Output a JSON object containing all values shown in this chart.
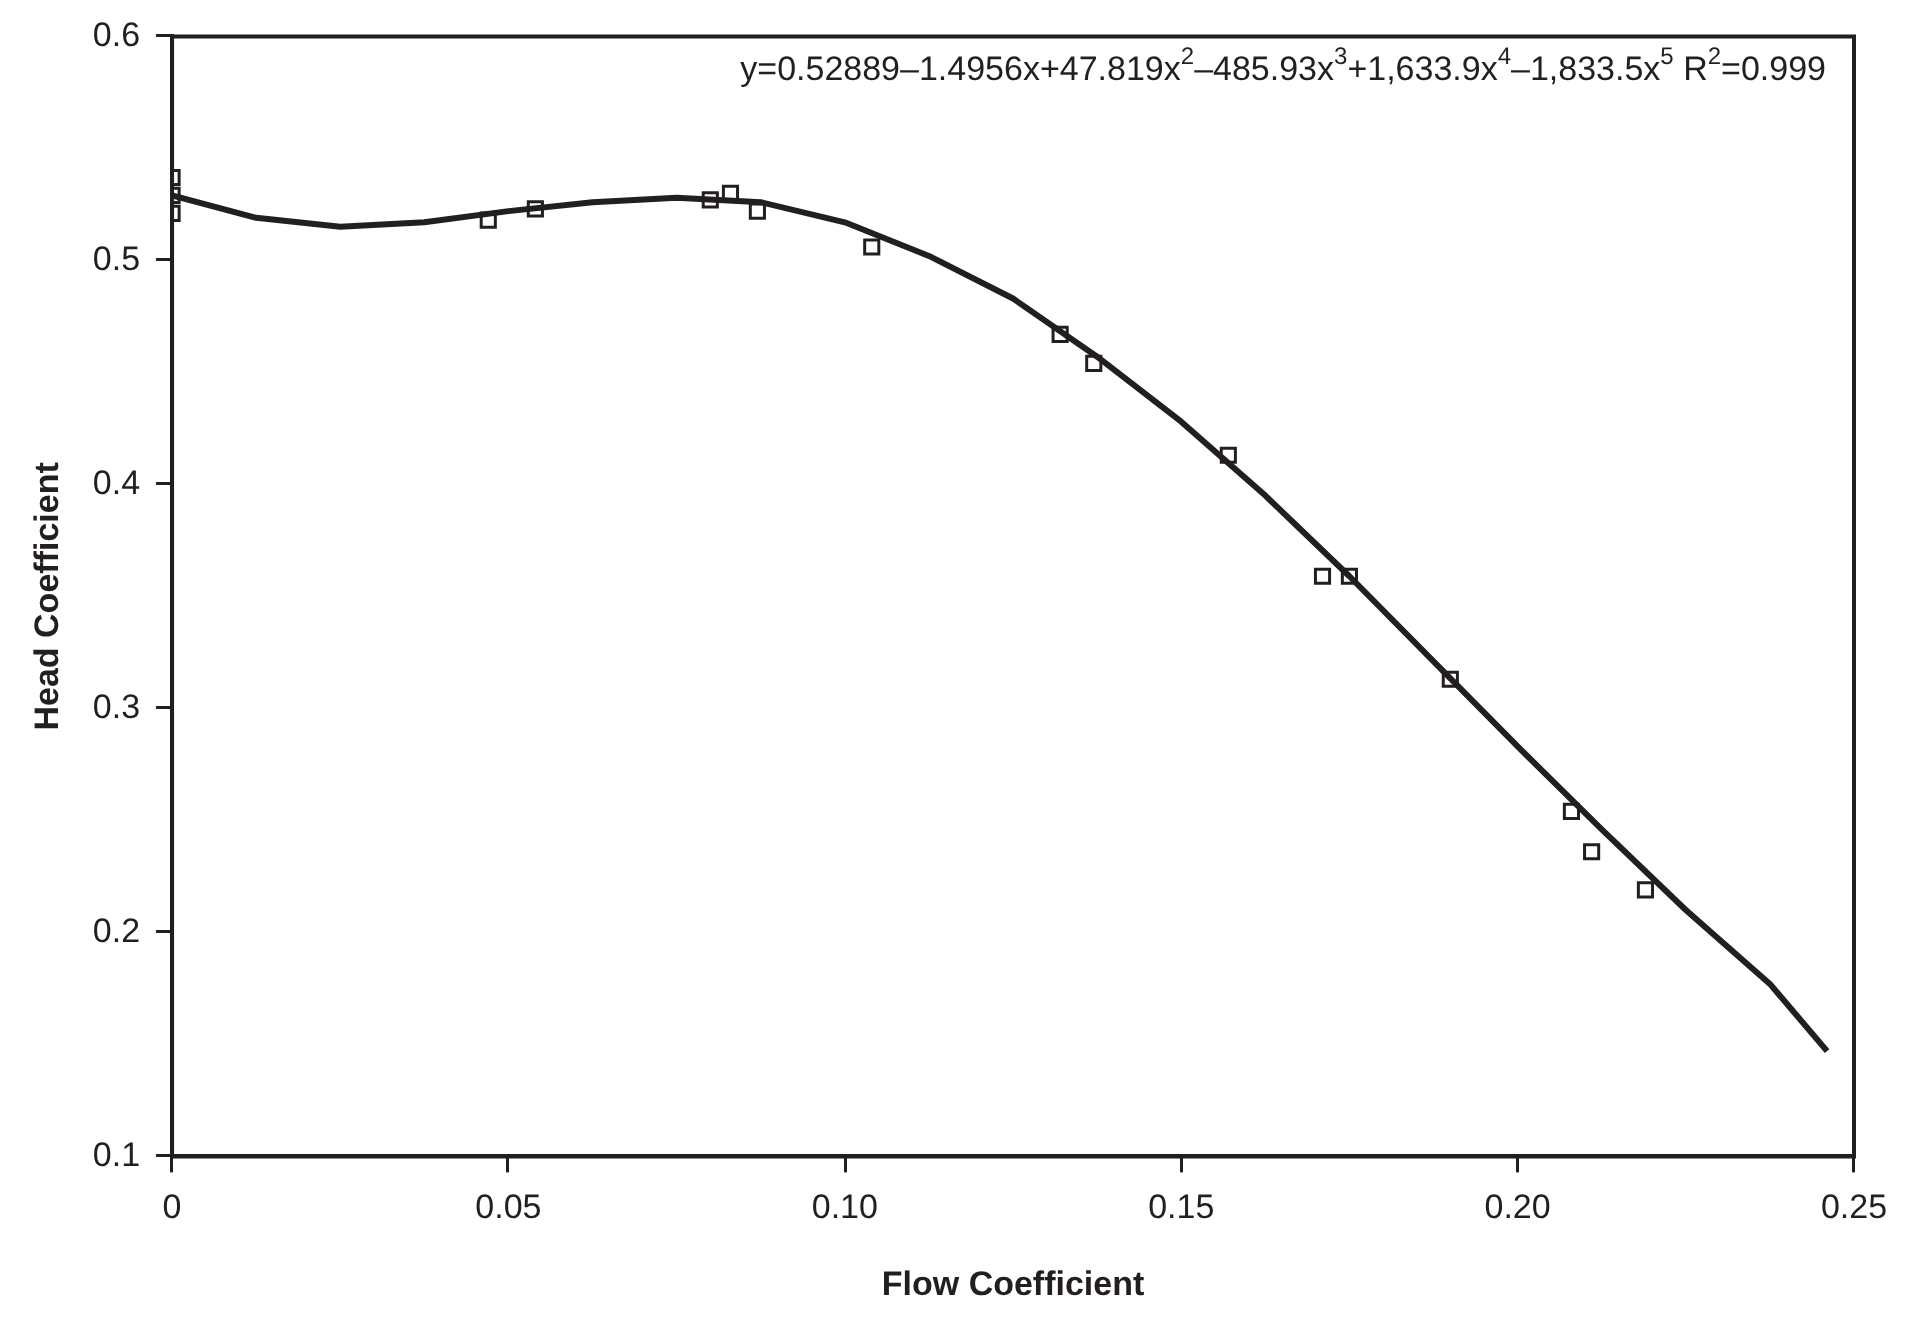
{
  "chart_data": {
    "type": "scatter",
    "xlabel": "Flow Coefficient",
    "ylabel": "Head Coefficient",
    "xlim": [
      0,
      0.25
    ],
    "xticks": [
      0,
      0.05,
      {
        "value": 0.1,
        "label": "0.10"
      },
      0.15,
      {
        "value": 0.2,
        "label": "0.20"
      },
      0.25
    ],
    "ylim": [
      0.1,
      0.6
    ],
    "yticks": [
      0.1,
      0.2,
      0.3,
      0.4,
      0.5,
      0.6
    ],
    "grid": false,
    "legend": false,
    "marker": "square",
    "annotations": [
      "y=0.52889–1.4956x+47.819x$^{2}$–485.93x$^{3}$+1,633.9x$^{4}$–1,833.5x$^{5}$ R$^{2}$=0.999"
    ],
    "series": [
      {
        "type": "scatter",
        "color": "#231f20",
        "x": [
          0,
          0,
          0,
          0.047,
          0.054,
          0.08,
          0.083,
          0.087,
          0.104,
          0.132,
          0.137,
          0.157,
          0.171,
          0.175,
          0.19,
          0.208,
          0.211,
          0.219
        ],
        "values": [
          0.537,
          0.529,
          0.521,
          0.518,
          0.523,
          0.527,
          0.53,
          0.522,
          0.506,
          0.467,
          0.454,
          0.413,
          0.359,
          0.359,
          0.313,
          0.254,
          0.236,
          0.219
        ]
      },
      {
        "type": "line",
        "color": "#231f20",
        "marker": "none",
        "x": [
          0,
          0.0125,
          0.025,
          0.0375,
          0.05,
          0.0625,
          0.075,
          0.0875,
          0.1,
          0.1125,
          0.125,
          0.1375,
          0.15,
          0.1625,
          0.175,
          0.1875,
          0.2,
          0.2125,
          0.225,
          0.2375,
          0.246
        ],
        "values": [
          0.529,
          0.519,
          0.515,
          0.517,
          0.522,
          0.526,
          0.528,
          0.526,
          0.517,
          0.502,
          0.483,
          0.457,
          0.428,
          0.395,
          0.359,
          0.321,
          0.283,
          0.246,
          0.21,
          0.177,
          0.147
        ]
      }
    ]
  }
}
